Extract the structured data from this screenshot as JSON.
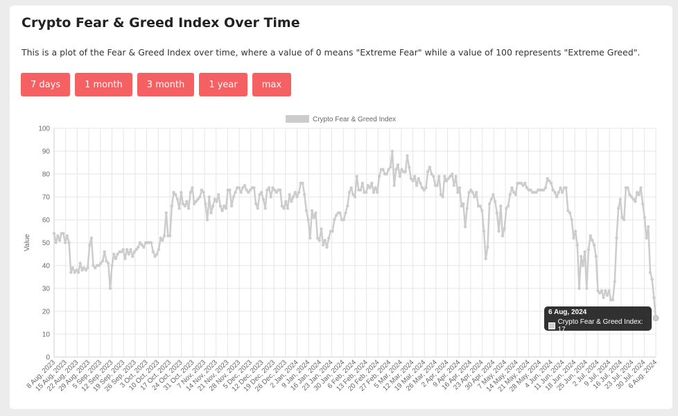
{
  "page": {
    "title": "Crypto Fear & Greed Index Over Time",
    "description": "This is a plot of the Fear & Greed Index over time, where a value of 0 means \"Extreme Fear\" while a value of 100 represents \"Extreme Greed\"."
  },
  "buttons": {
    "days7": "7 days",
    "month1": "1 month",
    "month3": "3 month",
    "year1": "1 year",
    "max": "max"
  },
  "tooltip": {
    "title": "6 Aug, 2024",
    "label": "Crypto Fear & Greed Index: 17"
  },
  "colors": {
    "button": "#f56063",
    "series": "#cccccc",
    "grid": "#e6e6e6"
  },
  "chart_data": {
    "type": "line",
    "title": "",
    "xlabel": "",
    "ylabel": "Value",
    "ylim": [
      0,
      100
    ],
    "yticks": [
      0,
      10,
      20,
      30,
      40,
      50,
      60,
      70,
      80,
      90,
      100
    ],
    "grid": true,
    "legend_position": "top",
    "x_tick_labels": [
      "8 Aug, 2023",
      "15 Aug, 2023",
      "22 Aug, 2023",
      "29 Aug, 2023",
      "5 Sep, 2023",
      "12 Sep, 2023",
      "19 Sep, 2023",
      "26 Sep, 2023",
      "3 Oct, 2023",
      "10 Oct, 2023",
      "17 Oct, 2023",
      "24 Oct, 2023",
      "31 Oct, 2023",
      "7 Nov, 2023",
      "14 Nov, 2023",
      "21 Nov, 2023",
      "28 Nov, 2023",
      "5 Dec, 2023",
      "12 Dec, 2023",
      "19 Dec, 2023",
      "26 Dec, 2023",
      "2 Jan, 2024",
      "9 Jan, 2024",
      "16 Jan, 2024",
      "23 Jan, 2024",
      "30 Jan, 2024",
      "6 Feb, 2024",
      "13 Feb, 2024",
      "20 Feb, 2024",
      "27 Feb, 2024",
      "5 Mar, 2024",
      "12 Mar, 2024",
      "19 Mar, 2024",
      "26 Mar, 2024",
      "2 Apr, 2024",
      "9 Apr, 2024",
      "16 Apr, 2024",
      "23 Apr, 2024",
      "30 Apr, 2024",
      "7 May, 2024",
      "14 May, 2024",
      "21 May, 2024",
      "28 May, 2024",
      "4 Jun, 2024",
      "11 Jun, 2024",
      "18 Jun, 2024",
      "25 Jun, 2024",
      "2 Jul, 2024",
      "9 Jul, 2024",
      "16 Jul, 2024",
      "23 Jul, 2024",
      "30 Jul, 2024",
      "6 Aug, 2024"
    ],
    "series": [
      {
        "name": "Crypto Fear & Greed Index",
        "values": [
          54,
          50,
          53,
          51,
          54,
          54,
          50,
          53,
          50,
          37,
          39,
          37,
          38,
          37,
          41,
          38,
          39,
          38,
          39,
          49,
          52,
          40,
          39,
          40,
          40,
          41,
          42,
          46,
          42,
          41,
          30,
          40,
          45,
          43,
          45,
          46,
          46,
          47,
          43,
          47,
          45,
          47,
          44,
          46,
          47,
          48,
          50,
          49,
          48,
          50,
          50,
          50,
          50,
          46,
          44,
          45,
          47,
          52,
          51,
          53,
          63,
          53,
          53,
          66,
          72,
          71,
          69,
          65,
          72,
          67,
          66,
          68,
          65,
          72,
          74,
          67,
          68,
          69,
          70,
          73,
          72,
          67,
          60,
          70,
          63,
          66,
          69,
          68,
          71,
          66,
          64,
          66,
          65,
          73,
          73,
          66,
          70,
          72,
          74,
          74,
          72,
          74,
          75,
          73,
          72,
          73,
          74,
          74,
          67,
          65,
          71,
          72,
          69,
          65,
          73,
          74,
          70,
          74,
          73,
          72,
          73,
          73,
          66,
          65,
          68,
          65,
          71,
          68,
          70,
          72,
          70,
          72,
          76,
          76,
          71,
          64,
          60,
          52,
          64,
          61,
          63,
          52,
          51,
          56,
          49,
          51,
          48,
          52,
          55,
          55,
          60,
          62,
          63,
          63,
          60,
          60,
          63,
          66,
          72,
          74,
          71,
          70,
          79,
          73,
          73,
          76,
          72,
          72,
          75,
          74,
          76,
          72,
          74,
          72,
          79,
          82,
          82,
          80,
          80,
          82,
          83,
          90,
          75,
          82,
          84,
          79,
          82,
          81,
          81,
          88,
          83,
          78,
          77,
          79,
          75,
          78,
          76,
          74,
          73,
          74,
          81,
          83,
          80,
          79,
          75,
          75,
          79,
          71,
          70,
          79,
          77,
          78,
          79,
          80,
          75,
          79,
          72,
          74,
          66,
          67,
          57,
          65,
          72,
          73,
          72,
          70,
          72,
          66,
          66,
          64,
          55,
          43,
          48,
          67,
          69,
          71,
          68,
          63,
          55,
          66,
          53,
          56,
          65,
          66,
          71,
          74,
          72,
          71,
          76,
          76,
          76,
          75,
          76,
          74,
          73,
          73,
          72,
          72,
          72,
          73,
          73,
          73,
          73,
          74,
          78,
          77,
          76,
          73,
          72,
          70,
          72,
          74,
          72,
          74,
          74,
          64,
          63,
          60,
          52,
          55,
          49,
          30,
          44,
          40,
          46,
          30,
          47,
          53,
          51,
          49,
          44,
          29,
          28,
          29,
          26,
          29,
          27,
          29,
          25,
          25,
          33,
          52,
          65,
          69,
          61,
          60,
          74,
          74,
          71,
          70,
          69,
          68,
          72,
          71,
          74,
          67,
          61,
          52,
          57,
          37,
          34,
          26,
          17
        ]
      }
    ]
  }
}
